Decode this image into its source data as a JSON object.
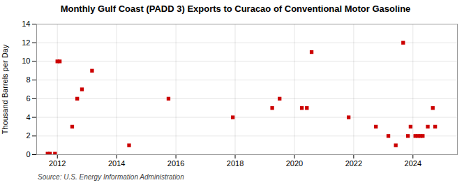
{
  "chart_data": {
    "type": "scatter",
    "title": "Monthly Gulf Coast (PADD 3) Exports to Curacao of Conventional Motor Gasoline",
    "ylabel": "Thousand Barrels per Day",
    "source": "Source: U.S. Energy Information Administration",
    "x": [
      2011.67,
      2011.75,
      2011.92,
      2012.0,
      2012.08,
      2012.5,
      2012.67,
      2012.83,
      2013.17,
      2014.42,
      2015.75,
      2017.92,
      2019.25,
      2019.5,
      2020.25,
      2020.42,
      2020.58,
      2021.83,
      2022.75,
      2023.17,
      2023.42,
      2023.67,
      2023.83,
      2023.92,
      2024.08,
      2024.17,
      2024.25,
      2024.33,
      2024.5,
      2024.67,
      2024.75
    ],
    "values": [
      0.1,
      0.1,
      0.1,
      10.0,
      10.0,
      3.0,
      6.0,
      7.0,
      9.0,
      1.0,
      6.0,
      4.0,
      5.0,
      6.0,
      5.0,
      5.0,
      11.0,
      4.0,
      3.0,
      2.0,
      1.0,
      12.0,
      2.0,
      3.0,
      2.0,
      2.0,
      2.0,
      2.0,
      3.0,
      5.0,
      3.0
    ],
    "color": "#cc0000",
    "marker": "square",
    "xlim": [
      2011.3,
      2025.5
    ],
    "xticks": [
      2012,
      2014,
      2016,
      2018,
      2020,
      2022,
      2024
    ],
    "ylim": [
      0,
      14
    ],
    "yticks": [
      0,
      2,
      4,
      6,
      8,
      10,
      12,
      14
    ],
    "grid": true
  }
}
